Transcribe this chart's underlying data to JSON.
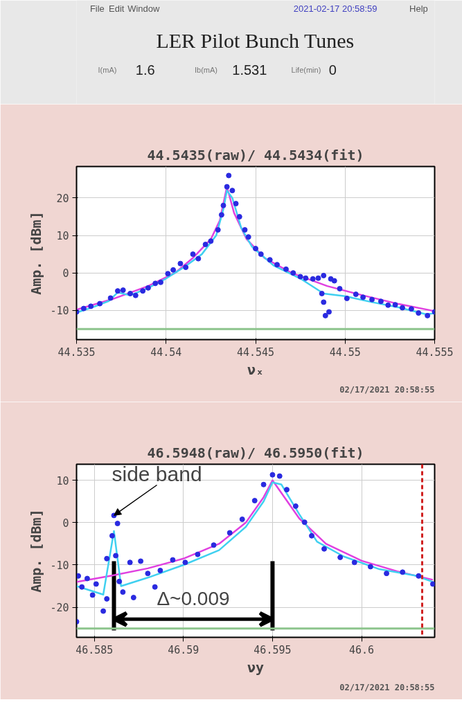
{
  "chart_data": [
    {
      "type": "other",
      "title": "LER Pilot Bunch Tunes",
      "annotations": [
        "File",
        "Edit",
        "Window",
        "2021-02-17 20:58:59",
        "Help",
        "I(mA)",
        "1.6",
        "Ib(mA)",
        "1.531",
        "Life(min)",
        "0"
      ]
    },
    {
      "type": "scatter",
      "title": "44.5435(raw)/ 44.5434(fit)",
      "xlabel": "νₓ",
      "ylabel": "Amp. [dBm]",
      "xlim": [
        44.535,
        44.555
      ],
      "ylim": [
        -17.8,
        28.4
      ],
      "xticks": [
        44.535,
        44.54,
        44.545,
        44.55,
        44.555
      ],
      "yticks": [
        -10,
        0,
        10,
        20
      ],
      "grid": true,
      "ref_lines": [
        {
          "axis": "y",
          "value": -15,
          "color": "#8cc48c"
        }
      ],
      "annotations": [
        "02/17/2021 20:58:55"
      ],
      "series": [
        {
          "type": "line",
          "color": "#e040e0",
          "x": [
            44.535,
            44.537,
            44.539,
            44.5405,
            44.5415,
            44.5425,
            44.543,
            44.5434,
            44.5438,
            44.5445,
            44.5455,
            44.547,
            44.549,
            44.551,
            44.553,
            44.555
          ],
          "values": [
            -9.8,
            -7.0,
            -3.5,
            0,
            4,
            9,
            14,
            23,
            16,
            9,
            4,
            0,
            -3.5,
            -6,
            -8.3,
            -10.2
          ]
        },
        {
          "type": "line",
          "color": "#40d0f0",
          "x": [
            44.535,
            44.536,
            44.5368,
            44.5373,
            44.538,
            44.539,
            44.54,
            44.541,
            44.542,
            44.5428,
            44.5432,
            44.5434,
            44.5437,
            44.5442,
            44.5448,
            44.546,
            44.5475,
            44.5488,
            44.55,
            44.5515,
            44.553,
            44.5545,
            44.555
          ],
          "values": [
            -10.6,
            -9.0,
            -7.5,
            -5.2,
            -6.0,
            -4.0,
            -1.5,
            1.5,
            5,
            10,
            17,
            22,
            20,
            12,
            7,
            2,
            -1.5,
            -5.5,
            -6.2,
            -7.8,
            -9.2,
            -11.0,
            -10.8
          ]
        },
        {
          "type": "scatter",
          "marker": "circle",
          "color": "#2a2ae0",
          "x": [
            44.535,
            44.5354,
            44.5358,
            44.5363,
            44.5369,
            44.5373,
            44.5376,
            44.538,
            44.5383,
            44.5387,
            44.539,
            44.5394,
            44.5397,
            44.5401,
            44.5404,
            44.5408,
            44.5411,
            44.5415,
            44.5418,
            44.5422,
            44.5425,
            44.5429,
            44.5431,
            44.5432,
            44.5434,
            44.5435,
            44.5437,
            44.5439,
            44.5441,
            44.5444,
            44.5446,
            44.545,
            44.5453,
            44.5458,
            44.5462,
            44.5467,
            44.5471,
            44.5475,
            44.5478,
            44.5482,
            44.5485,
            44.5487,
            44.5488,
            44.5488,
            44.5489,
            44.5491,
            44.5492,
            44.5494,
            44.5497,
            44.5501,
            44.5506,
            44.551,
            44.5515,
            44.552,
            44.5524,
            44.5528,
            44.5532,
            44.5537,
            44.5541,
            44.5546,
            44.555
          ],
          "values": [
            -10.4,
            -9.5,
            -8.9,
            -8.2,
            -6.7,
            -4.8,
            -4.6,
            -5.5,
            -6.0,
            -4.8,
            -4.0,
            -2.8,
            -2.5,
            -0.2,
            0.8,
            2.5,
            1.5,
            5.0,
            3.8,
            7.6,
            8.5,
            11.5,
            15.5,
            18.0,
            23.0,
            26.0,
            22.0,
            18.5,
            15.0,
            11.5,
            9.6,
            6.5,
            5.0,
            3.5,
            2.2,
            1.0,
            0.0,
            -1.0,
            -1.4,
            -1.6,
            -1.4,
            -5.5,
            -0.7,
            -7.8,
            -11.4,
            -10.4,
            -1.6,
            -2.1,
            -4.2,
            -6.8,
            -5.7,
            -6.5,
            -7.1,
            -7.6,
            -8.6,
            -8.5,
            -9.3,
            -9.6,
            -10.7,
            -11.4,
            -10.4
          ]
        }
      ]
    },
    {
      "type": "scatter",
      "title": "46.5948(raw)/ 46.5950(fit)",
      "xlabel": "νy",
      "ylabel": "Amp. [dBm]",
      "xlim": [
        46.584,
        46.6041
      ],
      "ylim": [
        -27.1,
        13.8
      ],
      "xticks": [
        46.585,
        46.59,
        46.595,
        46.6
      ],
      "yticks": [
        -20,
        -10,
        0,
        10
      ],
      "grid": true,
      "ref_lines": [
        {
          "axis": "y",
          "value": -25,
          "color": "#8cc48c"
        },
        {
          "axis": "x",
          "value": 46.6034,
          "color": "#d02020",
          "line_style": "dashed"
        },
        {
          "axis": "x",
          "value": 46.5861,
          "color": "#000000"
        },
        {
          "axis": "x",
          "value": 46.595,
          "color": "#000000",
          "label": "Δ~0.009"
        }
      ],
      "annotations": [
        "02/17/2021 20:58:55",
        {
          "text": "side band",
          "x": 46.5861,
          "y": 1.7
        }
      ],
      "series": [
        {
          "type": "line",
          "color": "#e040e0",
          "x": [
            46.584,
            46.586,
            46.588,
            46.59,
            46.592,
            46.5935,
            46.5945,
            46.595,
            46.5955,
            46.5965,
            46.598,
            46.6,
            46.602,
            46.604
          ],
          "values": [
            -14,
            -12.5,
            -10.8,
            -8.5,
            -5,
            0,
            6,
            10,
            7,
            1,
            -5,
            -9,
            -11.5,
            -13.5
          ]
        },
        {
          "type": "line",
          "color": "#40d0f0",
          "x": [
            46.584,
            46.5855,
            46.5861,
            46.5865,
            46.588,
            46.59,
            46.592,
            46.5935,
            46.5945,
            46.595,
            46.5955,
            46.5965,
            46.5975,
            46.599,
            46.601,
            46.603,
            46.604
          ],
          "values": [
            -15,
            -17,
            -2,
            -15,
            -13,
            -10,
            -6.5,
            -1,
            5,
            9.5,
            9,
            2,
            -4.5,
            -8,
            -11,
            -12.5,
            -14
          ]
        },
        {
          "type": "scatter",
          "marker": "circle",
          "color": "#2a2ae0",
          "x": [
            46.584,
            46.5841,
            46.5843,
            46.5846,
            46.5849,
            46.5851,
            46.5855,
            46.5857,
            46.5857,
            46.586,
            46.5861,
            46.5863,
            46.5862,
            46.5864,
            46.5866,
            46.587,
            46.5872,
            46.5876,
            46.588,
            46.5884,
            46.5887,
            46.5894,
            46.5901,
            46.5908,
            46.5917,
            46.5926,
            46.5933,
            46.594,
            46.5945,
            46.595,
            46.5954,
            46.5958,
            46.5963,
            46.5968,
            46.5972,
            46.5979,
            46.5988,
            46.5996,
            46.6005,
            46.6014,
            46.6023,
            46.6032,
            46.604
          ],
          "values": [
            -23.4,
            -12.6,
            -15.2,
            -13.2,
            -17.1,
            -14.5,
            -20.9,
            -8.5,
            -18.0,
            -3.1,
            1.7,
            -0.2,
            -7.8,
            -13.9,
            -16.4,
            -9.4,
            -17.7,
            -9.1,
            -12.0,
            -15.2,
            -11.3,
            -8.8,
            -9.4,
            -7.5,
            -5.3,
            -2.4,
            0.8,
            5.2,
            9.0,
            11.3,
            11.0,
            7.8,
            3.9,
            0.1,
            -3.1,
            -6.2,
            -8.2,
            -9.4,
            -10.4,
            -12.0,
            -11.7,
            -12.6,
            -14.5
          ]
        }
      ]
    }
  ]
}
